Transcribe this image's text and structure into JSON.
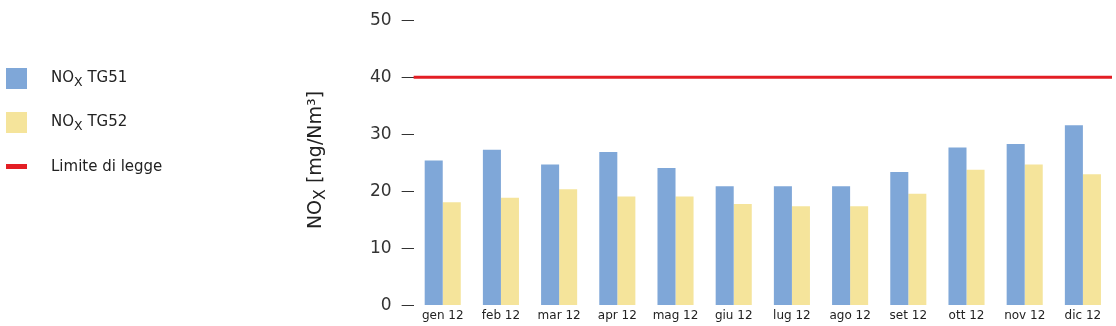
{
  "chart_data": {
    "type": "bar",
    "ylabel": "NO$_{X}$ [mg/Nm³]",
    "categories": [
      "gen 12",
      "feb 12",
      "mar 12",
      "apr 12",
      "mag 12",
      "giu 12",
      "lug 12",
      "ago 12",
      "set 12",
      "ott 12",
      "nov 12",
      "dic 12"
    ],
    "series": [
      {
        "name": "NO$_{X}$ TG51",
        "color": "#7fa7d8",
        "values": [
          25.4,
          27.3,
          24.7,
          26.9,
          24.1,
          20.9,
          20.9,
          20.9,
          23.4,
          27.7,
          28.3,
          31.6
        ]
      },
      {
        "name": "NO$_{X}$ TG52",
        "color": "#f5e49b",
        "values": [
          18.1,
          18.9,
          20.4,
          19.1,
          19.1,
          17.8,
          17.4,
          17.4,
          19.6,
          23.8,
          24.7,
          23.0
        ]
      }
    ],
    "ref_lines": [
      {
        "axis": "y",
        "value": 40,
        "label": "Limite di legge",
        "color": "#e31e24"
      }
    ],
    "ylim": [
      0,
      50
    ],
    "yticks": [
      0,
      10,
      20,
      30,
      40,
      50
    ],
    "grid": false,
    "legend": "left"
  }
}
